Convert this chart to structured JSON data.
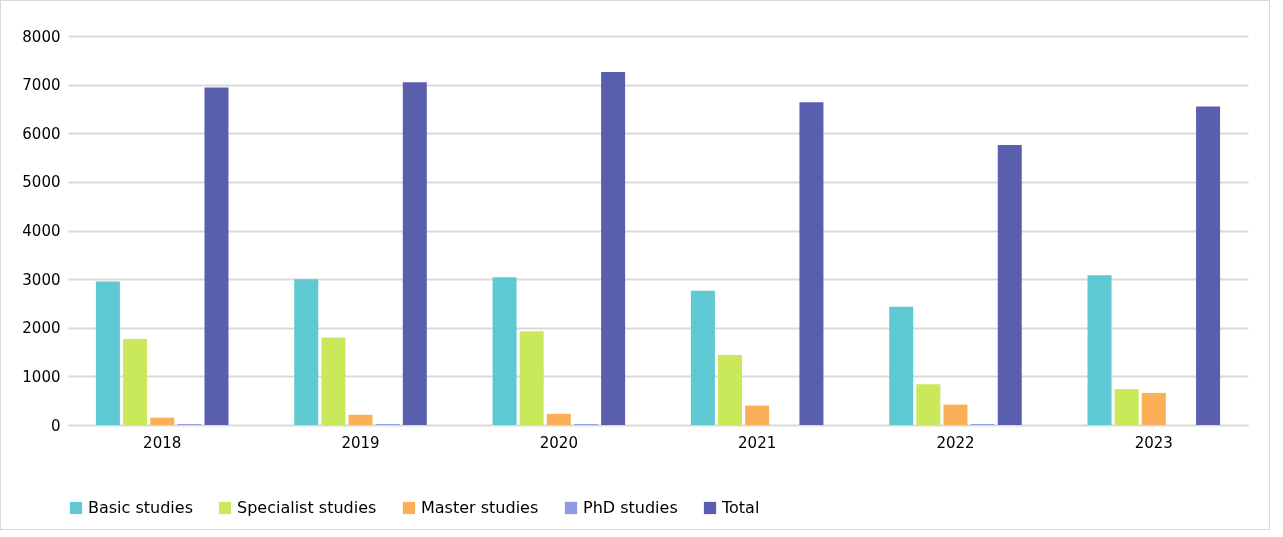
{
  "chart_data": {
    "type": "bar",
    "categories": [
      "2018",
      "2019",
      "2020",
      "2021",
      "2022",
      "2023"
    ],
    "series": [
      {
        "name": "Basic studies",
        "color": "#5ec8d3",
        "values": [
          2950,
          3000,
          3040,
          2760,
          2430,
          3080
        ]
      },
      {
        "name": "Specialist studies",
        "color": "#c9e85a",
        "values": [
          1770,
          1800,
          1930,
          1440,
          840,
          740
        ]
      },
      {
        "name": "Master studies",
        "color": "#fbb058",
        "values": [
          150,
          210,
          230,
          400,
          420,
          660
        ]
      },
      {
        "name": "PhD studies",
        "color": "#8f9ae6",
        "values": [
          20,
          20,
          20,
          0,
          20,
          0
        ]
      },
      {
        "name": "Total",
        "color": "#5a5fad",
        "values": [
          6940,
          7050,
          7260,
          6640,
          5760,
          6550
        ]
      }
    ],
    "ylim": [
      0,
      8000
    ],
    "yticks": [
      0,
      1000,
      2000,
      3000,
      4000,
      5000,
      6000,
      7000,
      8000
    ],
    "grid": "y",
    "legend": "bottom"
  }
}
